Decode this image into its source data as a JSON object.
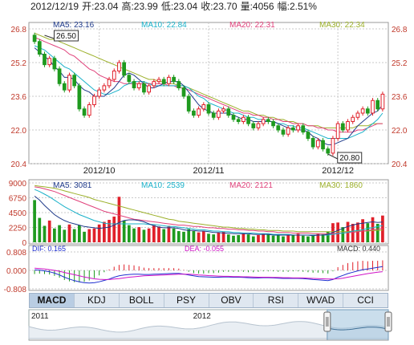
{
  "header": {
    "date": "2012/12/19",
    "open_label": "开:",
    "open": "23.04",
    "high_label": "高:",
    "high": "23.99",
    "low_label": "低:",
    "low": "23.04",
    "close_label": "收:",
    "close": "23.70",
    "volume_label": "量:",
    "volume": "4056",
    "change_label": "幅:",
    "change": "2.51%"
  },
  "colors": {
    "up": "#e0202a",
    "down": "#1f9a1f",
    "ma5": "#1f3a8a",
    "ma10": "#19b1c9",
    "ma20": "#e0407a",
    "ma30": "#9cb02a",
    "grid": "#c9c9c9",
    "axis": "#333333"
  },
  "tabs": [
    "MACD",
    "KDJ",
    "BOLL",
    "PSY",
    "OBV",
    "RSI",
    "WVAD",
    "CCI"
  ],
  "active_tab": "MACD",
  "chart_data": [
    {
      "type": "candlestick",
      "name": "price",
      "ylim": [
        20.4,
        26.8
      ],
      "yticks": [
        "26.8",
        "25.2",
        "23.6",
        "22.0",
        "20.4"
      ],
      "xticks": [
        {
          "label": "2012/10",
          "index": 13
        },
        {
          "label": "2012/11",
          "index": 35
        },
        {
          "label": "2012/12",
          "index": 61
        }
      ],
      "legend": [
        {
          "key": "ma5",
          "label": "MA5: 23.16"
        },
        {
          "key": "ma10",
          "label": "MA10: 22.84"
        },
        {
          "key": "ma20",
          "label": "MA20: 22.31"
        },
        {
          "key": "ma30",
          "label": "MA30: 22.34"
        }
      ],
      "annotations": [
        {
          "label": "26.50",
          "index": 2
        },
        {
          "label": "20.80",
          "index": 59
        }
      ],
      "close": [
        26.2,
        25.6,
        25.1,
        25.4,
        24.9,
        24.2,
        23.9,
        24.6,
        24.1,
        23.0,
        22.7,
        23.2,
        23.6,
        23.9,
        24.1,
        24.4,
        24.8,
        25.2,
        24.6,
        24.3,
        24.0,
        24.2,
        23.8,
        24.1,
        24.3,
        24.4,
        24.2,
        24.5,
        24.3,
        24.0,
        23.6,
        22.9,
        22.7,
        23.0,
        23.2,
        22.8,
        22.6,
        22.9,
        23.0,
        22.7,
        22.5,
        22.4,
        22.6,
        22.3,
        22.1,
        22.3,
        22.5,
        22.4,
        22.2,
        22.0,
        21.8,
        22.1,
        22.0,
        22.2,
        21.9,
        21.6,
        21.2,
        21.5,
        21.1,
        20.9,
        21.6,
        22.3,
        22.0,
        22.4,
        22.6,
        22.8,
        23.0,
        22.8,
        23.4,
        23.0,
        23.7
      ],
      "ma5": [
        25.9,
        25.7,
        25.5,
        25.3,
        25.0,
        24.8,
        24.5,
        24.5,
        24.4,
        24.1,
        23.9,
        23.8,
        23.6,
        23.6,
        23.6,
        23.8,
        24.0,
        24.3,
        24.6,
        24.7,
        24.6,
        24.4,
        24.2,
        24.0,
        24.0,
        24.1,
        24.2,
        24.3,
        24.3,
        24.3,
        24.1,
        23.8,
        23.5,
        23.2,
        23.0,
        22.9,
        22.8,
        22.8,
        22.8,
        22.8,
        22.7,
        22.6,
        22.5,
        22.5,
        22.4,
        22.4,
        22.4,
        22.4,
        22.4,
        22.3,
        22.2,
        22.1,
        22.0,
        22.0,
        22.0,
        21.9,
        21.7,
        21.6,
        21.4,
        21.3,
        21.3,
        21.4,
        21.5,
        21.6,
        21.9,
        22.2,
        22.4,
        22.6,
        22.8,
        22.9,
        23.2
      ],
      "ma10": [
        26.0,
        25.9,
        25.8,
        25.6,
        25.4,
        25.2,
        25.0,
        24.9,
        24.7,
        24.5,
        24.3,
        24.1,
        23.9,
        23.8,
        23.7,
        23.7,
        23.8,
        23.9,
        24.1,
        24.2,
        24.3,
        24.3,
        24.3,
        24.2,
        24.1,
        24.1,
        24.1,
        24.1,
        24.1,
        24.1,
        24.1,
        24.0,
        23.8,
        23.6,
        23.5,
        23.3,
        23.2,
        23.1,
        23.0,
        22.9,
        22.8,
        22.8,
        22.7,
        22.6,
        22.6,
        22.5,
        22.5,
        22.4,
        22.4,
        22.3,
        22.3,
        22.2,
        22.2,
        22.1,
        22.1,
        22.0,
        21.9,
        21.8,
        21.7,
        21.6,
        21.6,
        21.6,
        21.6,
        21.6,
        21.7,
        21.8,
        21.9,
        22.1,
        22.3,
        22.5,
        22.8
      ],
      "ma20": [
        26.4,
        26.3,
        26.2,
        26.1,
        26.0,
        25.9,
        25.8,
        25.6,
        25.5,
        25.3,
        25.1,
        24.9,
        24.8,
        24.6,
        24.5,
        24.4,
        24.3,
        24.3,
        24.2,
        24.2,
        24.2,
        24.2,
        24.2,
        24.2,
        24.2,
        24.2,
        24.2,
        24.1,
        24.1,
        24.0,
        24.0,
        23.9,
        23.8,
        23.7,
        23.6,
        23.5,
        23.4,
        23.3,
        23.2,
        23.1,
        23.0,
        22.9,
        22.8,
        22.8,
        22.7,
        22.7,
        22.6,
        22.6,
        22.5,
        22.5,
        22.4,
        22.4,
        22.3,
        22.3,
        22.3,
        22.2,
        22.2,
        22.1,
        22.1,
        22.0,
        22.0,
        21.9,
        21.9,
        21.9,
        21.9,
        22.0,
        22.0,
        22.1,
        22.2,
        22.3,
        22.3
      ],
      "ma30": [
        26.6,
        26.5,
        26.4,
        26.3,
        26.3,
        26.2,
        26.1,
        26.0,
        25.9,
        25.8,
        25.7,
        25.6,
        25.5,
        25.4,
        25.3,
        25.2,
        25.1,
        25.0,
        24.9,
        24.8,
        24.7,
        24.6,
        24.5,
        24.4,
        24.4,
        24.3,
        24.3,
        24.2,
        24.2,
        24.1,
        24.1,
        24.0,
        23.9,
        23.8,
        23.7,
        23.6,
        23.5,
        23.4,
        23.3,
        23.2,
        23.1,
        23.0,
        22.9,
        22.9,
        22.8,
        22.7,
        22.7,
        22.6,
        22.6,
        22.5,
        22.5,
        22.4,
        22.4,
        22.3,
        22.3,
        22.2,
        22.2,
        22.2,
        22.1,
        22.1,
        22.1,
        22.1,
        22.1,
        22.1,
        22.1,
        22.2,
        22.2,
        22.2,
        22.3,
        22.3,
        22.3
      ]
    },
    {
      "type": "bar",
      "name": "volume",
      "ylim": [
        0,
        9000
      ],
      "yticks": [
        "9000",
        "6750",
        "4500",
        "2250",
        "0"
      ],
      "legend": [
        {
          "key": "ma5",
          "label": "MA5: 3081"
        },
        {
          "key": "ma10",
          "label": "MA10: 2539"
        },
        {
          "key": "ma20",
          "label": "MA20: 2121"
        },
        {
          "key": "ma30",
          "label": "MA30: 1860"
        }
      ],
      "values": [
        6400,
        3700,
        2500,
        3300,
        2100,
        2600,
        1900,
        2700,
        2000,
        2600,
        1600,
        2000,
        2100,
        2700,
        3100,
        3400,
        3900,
        6900,
        3300,
        2600,
        2100,
        2300,
        1900,
        2100,
        2600,
        2400,
        2000,
        2500,
        2100,
        1700,
        1600,
        2000,
        1700,
        1500,
        1700,
        1300,
        1200,
        1500,
        1600,
        1200,
        1000,
        1100,
        1300,
        1200,
        900,
        1100,
        1300,
        1200,
        1000,
        1100,
        900,
        1200,
        1100,
        1300,
        1000,
        900,
        1000,
        1300,
        1200,
        1600,
        2900,
        3000,
        2300,
        3100,
        2800,
        3000,
        3500,
        2900,
        3800,
        2800,
        4056
      ],
      "ma5": [
        7000,
        6400,
        5600,
        4900,
        4200,
        3700,
        3300,
        3000,
        2800,
        2600,
        2400,
        2300,
        2200,
        2100,
        2200,
        2300,
        2600,
        3000,
        3300,
        3400,
        3400,
        3300,
        3100,
        2800,
        2500,
        2300,
        2200,
        2200,
        2200,
        2100,
        1900,
        1800,
        1800,
        1700,
        1700,
        1600,
        1500,
        1500,
        1400,
        1400,
        1300,
        1300,
        1300,
        1300,
        1200,
        1200,
        1200,
        1200,
        1100,
        1100,
        1100,
        1100,
        1100,
        1100,
        1100,
        1100,
        1000,
        1100,
        1100,
        1200,
        1500,
        1800,
        2100,
        2400,
        2600,
        2800,
        2900,
        3000,
        3100,
        3000,
        3081
      ],
      "ma10": [
        8000,
        7700,
        7300,
        6900,
        6400,
        5900,
        5400,
        5000,
        4600,
        4200,
        3900,
        3600,
        3300,
        3100,
        2900,
        2800,
        2800,
        2800,
        2800,
        2800,
        2800,
        2800,
        2800,
        2700,
        2700,
        2600,
        2500,
        2400,
        2400,
        2300,
        2200,
        2100,
        2000,
        1900,
        1900,
        1800,
        1700,
        1700,
        1600,
        1600,
        1500,
        1500,
        1400,
        1400,
        1400,
        1300,
        1300,
        1300,
        1200,
        1200,
        1200,
        1200,
        1100,
        1100,
        1100,
        1100,
        1100,
        1100,
        1100,
        1100,
        1200,
        1300,
        1400,
        1500,
        1700,
        1800,
        1900,
        2100,
        2200,
        2400,
        2539
      ],
      "ma20": [
        8400,
        8300,
        8100,
        7900,
        7700,
        7400,
        7100,
        6800,
        6500,
        6200,
        5900,
        5600,
        5300,
        5000,
        4700,
        4500,
        4300,
        4100,
        3900,
        3700,
        3500,
        3400,
        3300,
        3200,
        3100,
        3000,
        2900,
        2800,
        2700,
        2600,
        2600,
        2500,
        2400,
        2400,
        2300,
        2200,
        2200,
        2100,
        2100,
        2000,
        2000,
        1900,
        1900,
        1800,
        1800,
        1700,
        1700,
        1600,
        1600,
        1500,
        1500,
        1500,
        1400,
        1400,
        1400,
        1400,
        1300,
        1300,
        1300,
        1300,
        1300,
        1400,
        1400,
        1500,
        1500,
        1600,
        1700,
        1800,
        1900,
        2000,
        2121
      ],
      "ma30": [
        8600,
        8500,
        8400,
        8300,
        8200,
        8000,
        7800,
        7600,
        7400,
        7200,
        7000,
        6800,
        6500,
        6300,
        6100,
        5900,
        5700,
        5500,
        5300,
        5100,
        4900,
        4700,
        4500,
        4300,
        4100,
        3900,
        3700,
        3500,
        3400,
        3200,
        3100,
        3000,
        2900,
        2800,
        2700,
        2600,
        2500,
        2400,
        2300,
        2300,
        2200,
        2100,
        2100,
        2000,
        2000,
        1900,
        1900,
        1800,
        1800,
        1800,
        1700,
        1700,
        1700,
        1600,
        1600,
        1600,
        1600,
        1600,
        1600,
        1600,
        1600,
        1600,
        1600,
        1600,
        1700,
        1700,
        1700,
        1700,
        1800,
        1800,
        1860
      ]
    },
    {
      "type": "line",
      "name": "macd",
      "ylim": [
        -0.808,
        0.808
      ],
      "yticks": [
        "0.808",
        "0.000",
        "-0.808"
      ],
      "legend": [
        {
          "key": "macd_dif",
          "label": "DIF: 0.165"
        },
        {
          "key": "macd_dea",
          "label": "DEA: -0.055"
        },
        {
          "key": "macd_bar",
          "label": "MACD: 0.440"
        }
      ],
      "dif": [
        0.02,
        0.01,
        -0.02,
        -0.06,
        -0.12,
        -0.2,
        -0.3,
        -0.38,
        -0.45,
        -0.5,
        -0.54,
        -0.55,
        -0.54,
        -0.5,
        -0.44,
        -0.38,
        -0.3,
        -0.24,
        -0.2,
        -0.18,
        -0.17,
        -0.17,
        -0.18,
        -0.18,
        -0.17,
        -0.16,
        -0.15,
        -0.14,
        -0.13,
        -0.13,
        -0.16,
        -0.2,
        -0.24,
        -0.27,
        -0.28,
        -0.29,
        -0.3,
        -0.3,
        -0.29,
        -0.29,
        -0.3,
        -0.3,
        -0.31,
        -0.32,
        -0.33,
        -0.33,
        -0.32,
        -0.32,
        -0.33,
        -0.34,
        -0.35,
        -0.35,
        -0.35,
        -0.35,
        -0.36,
        -0.38,
        -0.4,
        -0.41,
        -0.43,
        -0.45,
        -0.4,
        -0.3,
        -0.22,
        -0.14,
        -0.08,
        -0.02,
        0.03,
        0.06,
        0.1,
        0.13,
        0.165
      ],
      "dea": [
        0.1,
        0.08,
        0.06,
        0.03,
        0.0,
        -0.04,
        -0.09,
        -0.14,
        -0.19,
        -0.24,
        -0.29,
        -0.33,
        -0.37,
        -0.39,
        -0.4,
        -0.4,
        -0.38,
        -0.36,
        -0.33,
        -0.3,
        -0.28,
        -0.26,
        -0.24,
        -0.23,
        -0.22,
        -0.21,
        -0.2,
        -0.19,
        -0.18,
        -0.17,
        -0.17,
        -0.17,
        -0.18,
        -0.2,
        -0.21,
        -0.23,
        -0.24,
        -0.25,
        -0.26,
        -0.26,
        -0.27,
        -0.27,
        -0.28,
        -0.28,
        -0.29,
        -0.3,
        -0.3,
        -0.3,
        -0.31,
        -0.31,
        -0.32,
        -0.32,
        -0.33,
        -0.33,
        -0.33,
        -0.34,
        -0.35,
        -0.36,
        -0.37,
        -0.38,
        -0.38,
        -0.37,
        -0.34,
        -0.3,
        -0.26,
        -0.22,
        -0.18,
        -0.14,
        -0.11,
        -0.08,
        -0.055
      ]
    }
  ],
  "navigator": {
    "labels": [
      {
        "label": "2011",
        "at": 0.0
      },
      {
        "label": "2012",
        "at": 0.45
      }
    ],
    "window_start": 0.83
  }
}
